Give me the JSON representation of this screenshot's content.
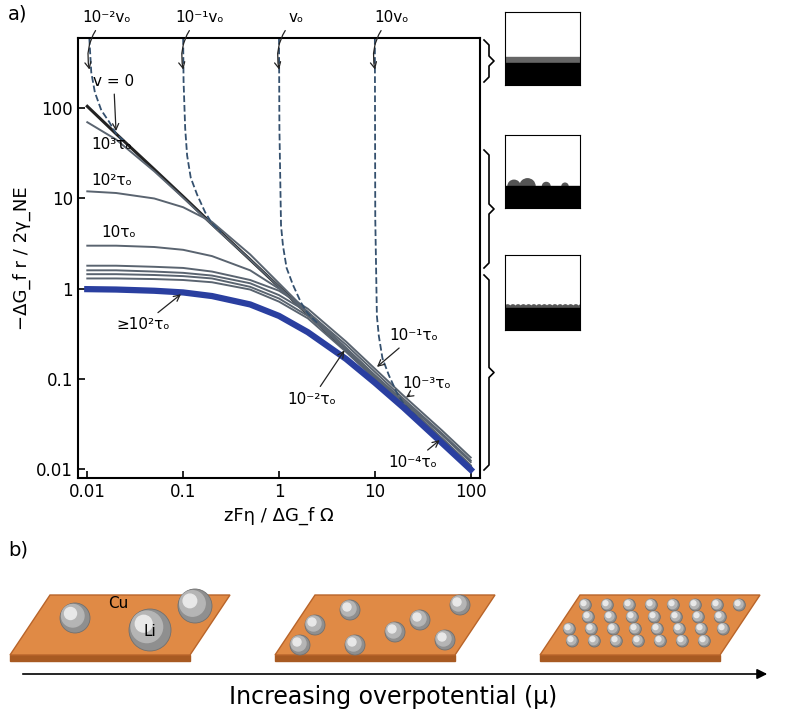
{
  "panel_labels": [
    "a)",
    "b)"
  ],
  "chart_data": {
    "type": "line",
    "x_label": "zFη / ΔG_f Ω",
    "y_label": "−ΔG_f r / 2γ_NE",
    "log": true,
    "grid": false,
    "xlim": [
      0.008,
      125
    ],
    "ylim": [
      0.008,
      600
    ],
    "xticks": [
      0.01,
      0.1,
      1,
      10,
      100
    ],
    "yticks": [
      0.01,
      0.1,
      1,
      10,
      100
    ],
    "series": [
      {
        "name": "v = 0",
        "color": "#222222",
        "line_style": "solid",
        "x": [
          0.01,
          0.02,
          0.05,
          0.1,
          0.2,
          0.5,
          1,
          2,
          5,
          10,
          20,
          50,
          100
        ],
        "values": [
          105,
          52,
          21,
          10.5,
          5.2,
          2.1,
          1.05,
          0.52,
          0.21,
          0.105,
          0.052,
          0.021,
          0.0105
        ]
      },
      {
        "name": "10³τₒ",
        "color": "#5a6470",
        "line_style": "solid",
        "x": [
          0.01,
          0.02,
          0.05,
          0.1,
          0.2,
          0.5,
          1,
          2,
          5,
          10,
          20,
          50,
          100
        ],
        "values": [
          70,
          45,
          20,
          10.2,
          5.1,
          2.1,
          1.05,
          0.52,
          0.21,
          0.105,
          0.052,
          0.021,
          0.0105
        ]
      },
      {
        "name": "10²τₒ",
        "color": "#5a6470",
        "line_style": "solid",
        "x": [
          0.01,
          0.02,
          0.05,
          0.1,
          0.2,
          0.5,
          1,
          2,
          5,
          10,
          20,
          50,
          100
        ],
        "values": [
          12,
          11.5,
          10,
          8,
          5.5,
          2.4,
          1.15,
          0.55,
          0.22,
          0.108,
          0.054,
          0.022,
          0.011
        ]
      },
      {
        "name": "10τₒ",
        "color": "#5a6470",
        "line_style": "solid",
        "x": [
          0.01,
          0.02,
          0.05,
          0.1,
          0.2,
          0.5,
          1,
          2,
          5,
          10,
          20,
          50,
          100
        ],
        "values": [
          3,
          3,
          2.9,
          2.7,
          2.3,
          1.6,
          1.0,
          0.55,
          0.22,
          0.11,
          0.055,
          0.022,
          0.011
        ]
      },
      {
        "name": "10⁻¹τₒ",
        "color": "#5a6470",
        "line_style": "solid",
        "x": [
          0.01,
          0.02,
          0.05,
          0.1,
          0.2,
          0.5,
          1,
          2,
          5,
          10,
          20,
          50,
          100
        ],
        "values": [
          1.8,
          1.8,
          1.75,
          1.7,
          1.55,
          1.25,
          0.95,
          0.6,
          0.26,
          0.13,
          0.065,
          0.027,
          0.0135
        ]
      },
      {
        "name": "10⁻³τₒ",
        "color": "#5a6470",
        "line_style": "solid",
        "x": [
          0.01,
          0.02,
          0.05,
          0.1,
          0.2,
          0.5,
          1,
          2,
          5,
          10,
          20,
          50,
          100
        ],
        "values": [
          1.6,
          1.6,
          1.55,
          1.5,
          1.4,
          1.15,
          0.85,
          0.55,
          0.24,
          0.12,
          0.06,
          0.025,
          0.0125
        ]
      },
      {
        "name": "10⁻²τₒ",
        "color": "#5a6470",
        "line_style": "solid",
        "x": [
          0.01,
          0.02,
          0.05,
          0.1,
          0.2,
          0.5,
          1,
          2,
          5,
          10,
          20,
          50,
          100
        ],
        "values": [
          1.45,
          1.45,
          1.42,
          1.38,
          1.3,
          1.05,
          0.78,
          0.5,
          0.22,
          0.11,
          0.057,
          0.024,
          0.012
        ]
      },
      {
        "name": "10⁻⁴τₒ",
        "color": "#5a6470",
        "line_style": "solid",
        "x": [
          0.01,
          0.02,
          0.05,
          0.1,
          0.2,
          0.5,
          1,
          2,
          5,
          10,
          20,
          50,
          100
        ],
        "values": [
          1.3,
          1.3,
          1.28,
          1.25,
          1.18,
          0.98,
          0.72,
          0.47,
          0.2,
          0.1,
          0.052,
          0.022,
          0.011
        ]
      },
      {
        "name": "≥10²τₒ",
        "color": "#2a3fa0",
        "line_style": "solid",
        "x": [
          0.01,
          0.02,
          0.05,
          0.1,
          0.2,
          0.5,
          1,
          2,
          5,
          10,
          20,
          50,
          100
        ],
        "values": [
          0.99,
          0.98,
          0.95,
          0.91,
          0.83,
          0.67,
          0.5,
          0.33,
          0.167,
          0.091,
          0.048,
          0.0196,
          0.0099
        ]
      },
      {
        "name": "10⁻²vₒ",
        "color": "#34506e",
        "line_style": "dashed",
        "x": [
          0.0105,
          0.011,
          0.012,
          0.014,
          0.017,
          0.02,
          0.025
        ],
        "values": [
          600,
          250,
          150,
          95,
          70,
          52,
          42
        ]
      },
      {
        "name": "10⁻¹vₒ",
        "color": "#34506e",
        "line_style": "dashed",
        "x": [
          0.1,
          0.101,
          0.105,
          0.11,
          0.12,
          0.14,
          0.17,
          0.2,
          0.25
        ],
        "values": [
          600,
          200,
          60,
          30,
          17,
          11,
          7,
          5.3,
          4.2
        ]
      },
      {
        "name": "vₒ",
        "color": "#34506e",
        "line_style": "dashed",
        "x": [
          1,
          1.01,
          1.05,
          1.1,
          1.2,
          1.4,
          1.7,
          2,
          2.5
        ],
        "values": [
          600,
          60,
          5,
          3,
          1.7,
          1.1,
          0.7,
          0.53,
          0.42
        ]
      },
      {
        "name": "10vₒ",
        "color": "#34506e",
        "line_style": "dashed",
        "x": [
          10,
          10.1,
          10.5,
          11,
          12,
          14,
          17,
          20,
          25,
          30
        ],
        "values": [
          600,
          6,
          0.5,
          0.3,
          0.17,
          0.11,
          0.07,
          0.053,
          0.042,
          0.035
        ]
      }
    ]
  },
  "schematic": {
    "substrate_label": "Cu",
    "particle_label": "Li",
    "arrow_label": "Increasing overpotential (μ)"
  }
}
